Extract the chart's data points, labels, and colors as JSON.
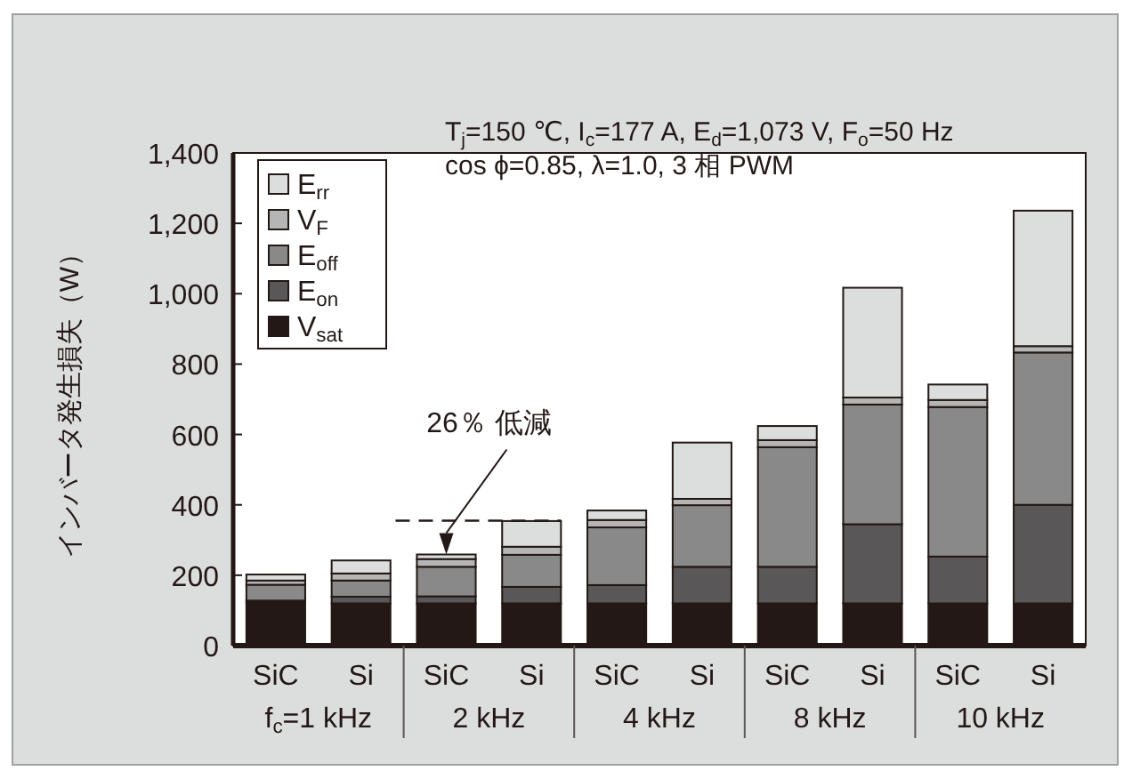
{
  "chart_data": {
    "type": "bar",
    "stacked": true,
    "title": "T$_{j}$=150 ℃, I$_{c}$=177 A, E$_{d}$=1,073 V, F$_{o}$=50 Hz",
    "subtitle": "cos ϕ=0.85, λ=1.0, 3 相 PWM",
    "ylabel": "インバータ発生損失（W）",
    "categories": [
      "SiC",
      "Si",
      "SiC",
      "Si",
      "SiC",
      "Si",
      "SiC",
      "Si",
      "SiC",
      "Si"
    ],
    "series": [
      {
        "name": "V$_{sat}$",
        "color": "#231815",
        "values": [
          123,
          120,
          120,
          120,
          120,
          120,
          120,
          120,
          120,
          120
        ]
      },
      {
        "name": "E$_{on}$",
        "color": "#595757",
        "values": [
          5,
          19,
          20,
          47,
          52,
          104,
          104,
          225,
          133,
          280
        ]
      },
      {
        "name": "E$_{off}$",
        "color": "#898989",
        "values": [
          45,
          46,
          84,
          91,
          164,
          175,
          340,
          340,
          425,
          433
        ]
      },
      {
        "name": "V$_{F}$",
        "color": "#b5b5b6",
        "values": [
          12,
          20,
          22,
          23,
          21,
          18,
          20,
          20,
          20,
          18
        ]
      },
      {
        "name": "E$_{rr}$",
        "color": "#dcdddd",
        "values": [
          17,
          37,
          13,
          73,
          27,
          160,
          40,
          312,
          44,
          385
        ]
      }
    ],
    "ylim": [
      0,
      1400
    ],
    "yticks": [
      0,
      200,
      400,
      600,
      800,
      {
        "value": 1000,
        "label": "1,000"
      },
      {
        "value": 1200,
        "label": "1,200"
      },
      {
        "value": 1400,
        "label": "1,400"
      }
    ],
    "ref_lines": [
      {
        "axis": "y",
        "value": 355,
        "line_style": "dashed",
        "color": "#231815"
      }
    ],
    "annotations": [
      "f$_{c}$=1 kHz",
      "2 kHz",
      "4 kHz",
      "8 kHz",
      "10 kHz",
      "26％ 低減"
    ],
    "legend": "top left"
  }
}
